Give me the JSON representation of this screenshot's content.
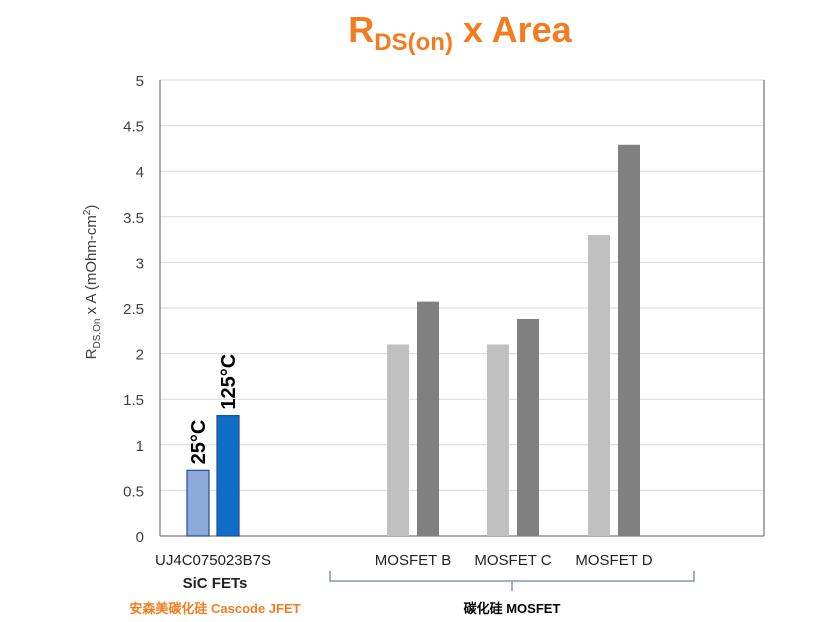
{
  "chart_data": {
    "type": "bar",
    "title_main": "R",
    "title_sub": "DS(on)",
    "title_rest": " x Area",
    "ylabel_main": "R",
    "ylabel_sub": "DS,On",
    "ylabel_rest": " x A (mOhm-cm",
    "ylabel_sup": "2",
    "ylabel_end": ")",
    "ylim": [
      0,
      5
    ],
    "yticks": [
      "0",
      "0.5",
      "1",
      "1.5",
      "2",
      "2.5",
      "3",
      "3.5",
      "4",
      "4.5",
      "5"
    ],
    "grid": true,
    "groups": [
      {
        "label": "UJ4C075023B7S",
        "values": [
          0.72,
          1.32
        ],
        "colors": [
          "#8eaadb",
          "#0f6fc6"
        ],
        "bar_labels": [
          "25°C",
          "125°C"
        ]
      },
      {
        "label": "MOSFET B",
        "values": [
          2.1,
          2.57
        ],
        "colors": [
          "#c0c0c0",
          "#808080"
        ]
      },
      {
        "label": "MOSFET C",
        "values": [
          2.1,
          2.38
        ],
        "colors": [
          "#c0c0c0",
          "#808080"
        ]
      },
      {
        "label": "MOSFET D",
        "values": [
          3.3,
          4.29
        ],
        "colors": [
          "#c0c0c0",
          "#808080"
        ]
      }
    ],
    "subgroup_label": "SiC FETs",
    "bottom_labels": [
      {
        "text": "安森美碳化硅 Cascode JFET",
        "color": "#f47c20"
      },
      {
        "text": "碳化硅 MOSFET",
        "color": "#000000"
      }
    ],
    "colors": {
      "title": "#f47c20",
      "axis": "#595959",
      "grid": "#d9d9d9",
      "bracket": "#8497b0"
    }
  }
}
